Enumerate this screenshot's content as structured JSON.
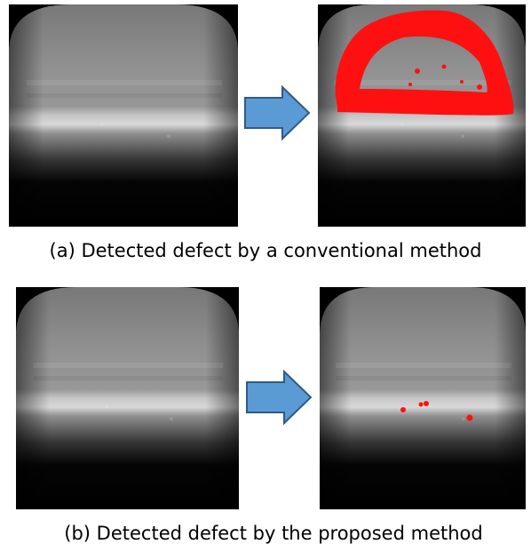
{
  "figure": {
    "captions": [
      "(a) Detected defect by a conventional method",
      "(b) Detected defect by the proposed method"
    ]
  }
}
